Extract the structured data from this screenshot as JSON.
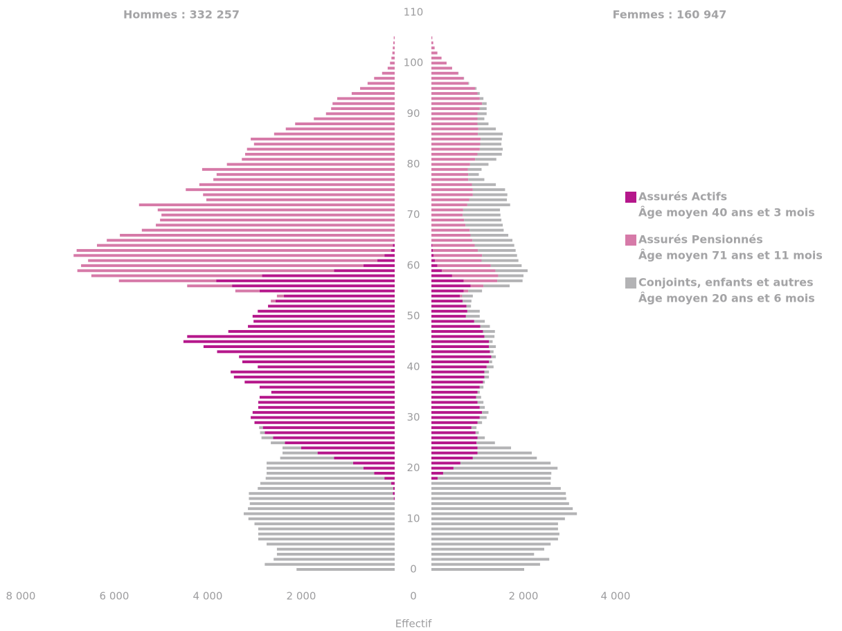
{
  "chart_data": {
    "type": "pyramid",
    "title_left": "Hommes : 332 257",
    "title_right": "Femmes : 160 947",
    "xlabel": "Effectif",
    "y": [
      0,
      1,
      2,
      3,
      4,
      5,
      6,
      7,
      8,
      9,
      10,
      11,
      12,
      13,
      14,
      15,
      16,
      17,
      18,
      19,
      20,
      21,
      22,
      23,
      24,
      25,
      26,
      27,
      28,
      29,
      30,
      31,
      32,
      33,
      34,
      35,
      36,
      37,
      38,
      39,
      40,
      41,
      42,
      43,
      44,
      45,
      46,
      47,
      48,
      49,
      50,
      51,
      52,
      53,
      54,
      55,
      56,
      57,
      58,
      59,
      60,
      61,
      62,
      63,
      64,
      65,
      66,
      67,
      68,
      69,
      70,
      71,
      72,
      73,
      74,
      75,
      76,
      77,
      78,
      79,
      80,
      81,
      82,
      83,
      84,
      85,
      86,
      87,
      88,
      89,
      90,
      91,
      92,
      93,
      94,
      95,
      96,
      97,
      98,
      99,
      100,
      101,
      102,
      103,
      104,
      105
    ],
    "ylim": [
      0,
      110
    ],
    "yticks": [
      0,
      10,
      20,
      30,
      40,
      50,
      60,
      70,
      80,
      90,
      100,
      110
    ],
    "xlim": [
      -8000,
      4000
    ],
    "xticks": [
      {
        "value": -8000,
        "label": "8 000"
      },
      {
        "value": -6000,
        "label": "6 000"
      },
      {
        "value": -4000,
        "label": "4 000"
      },
      {
        "value": -2000,
        "label": "2 000"
      },
      0,
      {
        "value": 2000,
        "label": "2 000"
      },
      {
        "value": 4000,
        "label": "4 000"
      }
    ],
    "series": [
      {
        "name": "Assurés Actifs",
        "subtitle": "Âge moyen 40 ans et 3 mois",
        "color": "#b5178b",
        "hommes": [
          0,
          0,
          0,
          0,
          0,
          0,
          0,
          0,
          0,
          0,
          0,
          0,
          0,
          0,
          20,
          40,
          30,
          75,
          220,
          440,
          670,
          890,
          1300,
          1650,
          2000,
          2350,
          2600,
          2780,
          2820,
          3000,
          3080,
          3040,
          2920,
          2920,
          2890,
          2640,
          2890,
          3210,
          3440,
          3510,
          2930,
          3260,
          3330,
          3800,
          4090,
          4520,
          4440,
          3560,
          3140,
          3020,
          3040,
          2930,
          2710,
          2550,
          2370,
          2890,
          3480,
          3820,
          2840,
          1300,
          670,
          370,
          220,
          75,
          40,
          0,
          0,
          0,
          0,
          0,
          0,
          0,
          0,
          0,
          0,
          0,
          0,
          0,
          0,
          0,
          0,
          0,
          0,
          0,
          0,
          0,
          0,
          0,
          0,
          0,
          0,
          0,
          0,
          0,
          0,
          0,
          0,
          0,
          0,
          0,
          0,
          0,
          0,
          0,
          0,
          0
        ],
        "femmes": [
          0,
          0,
          0,
          0,
          0,
          0,
          0,
          0,
          0,
          0,
          0,
          0,
          0,
          0,
          0,
          0,
          0,
          0,
          135,
          255,
          480,
          630,
          900,
          1000,
          1000,
          980,
          1000,
          960,
          870,
          1000,
          1050,
          1100,
          1050,
          1000,
          970,
          1000,
          1050,
          1120,
          1150,
          1150,
          1200,
          1250,
          1300,
          1270,
          1250,
          1250,
          1150,
          1120,
          1060,
          930,
          750,
          780,
          760,
          680,
          620,
          700,
          850,
          700,
          450,
          230,
          130,
          80,
          50,
          30,
          20,
          0,
          0,
          0,
          0,
          0,
          0,
          0,
          0,
          0,
          0,
          0,
          0,
          0,
          0,
          0,
          0,
          0,
          0,
          0,
          0,
          0,
          0,
          0,
          0,
          0,
          0,
          0,
          0,
          0,
          0,
          0,
          0,
          0,
          0,
          0,
          0,
          0,
          0,
          0,
          0,
          0
        ]
      },
      {
        "name": "Assurés Pensionnés",
        "subtitle": "Âge moyen 71 ans et 11 mois",
        "color": "#d67aa8",
        "hommes": [
          0,
          0,
          0,
          0,
          0,
          0,
          0,
          0,
          0,
          0,
          0,
          0,
          0,
          0,
          0,
          0,
          0,
          0,
          0,
          0,
          0,
          0,
          0,
          0,
          0,
          0,
          0,
          0,
          0,
          0,
          0,
          0,
          0,
          0,
          0,
          0,
          0,
          0,
          0,
          0,
          0,
          0,
          0,
          0,
          0,
          0,
          0,
          0,
          0,
          0,
          0,
          0,
          0,
          100,
          150,
          520,
          960,
          2080,
          3650,
          5490,
          6040,
          6190,
          6650,
          6730,
          6330,
          6160,
          5880,
          5410,
          5110,
          5020,
          4990,
          5070,
          5470,
          4030,
          4100,
          4470,
          4180,
          3880,
          3810,
          4120,
          3590,
          3270,
          3200,
          3160,
          3010,
          3080,
          2580,
          2330,
          2130,
          1730,
          1470,
          1360,
          1330,
          1230,
          920,
          740,
          580,
          440,
          270,
          150,
          100,
          70,
          50,
          40,
          30,
          20
        ],
        "femmes": [
          0,
          0,
          0,
          0,
          0,
          0,
          0,
          0,
          0,
          0,
          0,
          0,
          0,
          0,
          0,
          0,
          0,
          0,
          0,
          0,
          0,
          0,
          0,
          0,
          0,
          0,
          0,
          0,
          0,
          0,
          0,
          0,
          0,
          0,
          0,
          0,
          0,
          0,
          0,
          0,
          0,
          0,
          0,
          0,
          0,
          0,
          0,
          0,
          0,
          0,
          0,
          0,
          0,
          0,
          50,
          100,
          280,
          730,
          1000,
          1160,
          1160,
          1010,
          1050,
          980,
          920,
          890,
          850,
          830,
          740,
          710,
          680,
          690,
          780,
          820,
          900,
          900,
          880,
          800,
          800,
          790,
          840,
          950,
          1000,
          1050,
          1060,
          1070,
          1010,
          1020,
          1000,
          1000,
          1000,
          1050,
          1100,
          1050,
          1000,
          950,
          800,
          700,
          580,
          450,
          330,
          220,
          130,
          70,
          40,
          20
        ]
      },
      {
        "name": "Conjoints, enfants et autres",
        "subtitle": "Âge moyen 20 ans et 6 mois",
        "color": "#b3b3b5",
        "hommes": [
          2100,
          2780,
          2590,
          2520,
          2520,
          2740,
          2920,
          2920,
          2920,
          3000,
          3130,
          3230,
          3140,
          3100,
          3100,
          3080,
          2900,
          2800,
          2540,
          2300,
          2070,
          1850,
          1150,
          750,
          400,
          300,
          250,
          100,
          80,
          0,
          0,
          0,
          0,
          0,
          0,
          0,
          0,
          0,
          0,
          0,
          0,
          0,
          0,
          0,
          0,
          0,
          0,
          0,
          0,
          0,
          0,
          0,
          0,
          0,
          0,
          0,
          0,
          0,
          0,
          0,
          0,
          0,
          0,
          0,
          0,
          0,
          0,
          0,
          0,
          0,
          0,
          0,
          0,
          0,
          0,
          0,
          0,
          0,
          0,
          0,
          0,
          0,
          0,
          0,
          0,
          0,
          0,
          0,
          0,
          0,
          0,
          0,
          0,
          0,
          0,
          0,
          0,
          0,
          0,
          0,
          0,
          0,
          0,
          0,
          0,
          0
        ],
        "femmes": [
          2015,
          2360,
          2560,
          2230,
          2450,
          2590,
          2750,
          2780,
          2750,
          2750,
          2900,
          3160,
          3070,
          2990,
          2930,
          2920,
          2810,
          2590,
          2460,
          2350,
          2260,
          1960,
          1390,
          1180,
          730,
          400,
          160,
          70,
          110,
          100,
          150,
          140,
          110,
          130,
          110,
          50,
          80,
          40,
          100,
          100,
          150,
          70,
          100,
          80,
          150,
          80,
          220,
          260,
          210,
          230,
          300,
          270,
          100,
          190,
          230,
          300,
          570,
          550,
          550,
          700,
          670,
          800,
          760,
          820,
          860,
          870,
          820,
          740,
          810,
          810,
          820,
          800,
          930,
          820,
          750,
          700,
          520,
          350,
          230,
          300,
          400,
          460,
          530,
          500,
          460,
          460,
          540,
          380,
          240,
          150,
          200,
          150,
          100,
          80,
          50,
          30,
          20,
          10,
          10,
          0,
          0,
          0,
          0,
          0,
          0,
          0
        ]
      }
    ]
  }
}
